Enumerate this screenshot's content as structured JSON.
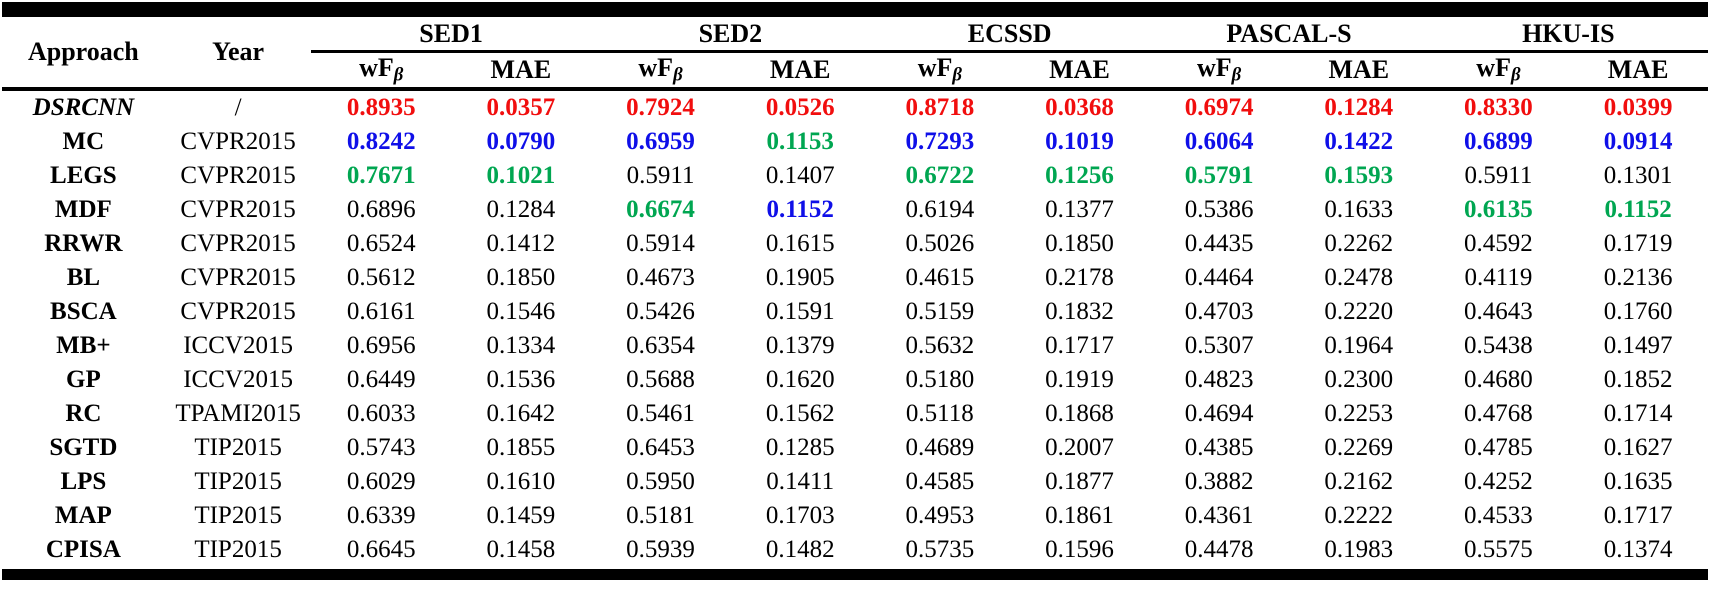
{
  "colors": {
    "r": "#f10e0e",
    "b": "#0f0fe8",
    "g": "#00a651",
    "k": "#000000"
  },
  "table": {
    "headers": {
      "approach": "Approach",
      "year": "Year"
    },
    "groups": [
      {
        "label": "SED1"
      },
      {
        "label": "SED2"
      },
      {
        "label": "ECSSD"
      },
      {
        "label": "PASCAL-S"
      },
      {
        "label": "HKU-IS"
      }
    ],
    "subcols": {
      "wf": "wF",
      "beta": "β",
      "mae": "MAE"
    },
    "rows": [
      {
        "approach": "DSRCNN",
        "italic": true,
        "year": "/",
        "cells": [
          {
            "v": "0.8935",
            "c": "r"
          },
          {
            "v": "0.0357",
            "c": "r"
          },
          {
            "v": "0.7924",
            "c": "r"
          },
          {
            "v": "0.0526",
            "c": "r"
          },
          {
            "v": "0.8718",
            "c": "r"
          },
          {
            "v": "0.0368",
            "c": "r"
          },
          {
            "v": "0.6974",
            "c": "r"
          },
          {
            "v": "0.1284",
            "c": "r"
          },
          {
            "v": "0.8330",
            "c": "r"
          },
          {
            "v": "0.0399",
            "c": "r"
          }
        ]
      },
      {
        "approach": "MC",
        "italic": false,
        "year": "CVPR2015",
        "cells": [
          {
            "v": "0.8242",
            "c": "b"
          },
          {
            "v": "0.0790",
            "c": "b"
          },
          {
            "v": "0.6959",
            "c": "b"
          },
          {
            "v": "0.1153",
            "c": "g"
          },
          {
            "v": "0.7293",
            "c": "b"
          },
          {
            "v": "0.1019",
            "c": "b"
          },
          {
            "v": "0.6064",
            "c": "b"
          },
          {
            "v": "0.1422",
            "c": "b"
          },
          {
            "v": "0.6899",
            "c": "b"
          },
          {
            "v": "0.0914",
            "c": "b"
          }
        ]
      },
      {
        "approach": "LEGS",
        "italic": false,
        "year": "CVPR2015",
        "cells": [
          {
            "v": "0.7671",
            "c": "g"
          },
          {
            "v": "0.1021",
            "c": "g"
          },
          {
            "v": "0.5911",
            "c": "k"
          },
          {
            "v": "0.1407",
            "c": "k"
          },
          {
            "v": "0.6722",
            "c": "g"
          },
          {
            "v": "0.1256",
            "c": "g"
          },
          {
            "v": "0.5791",
            "c": "g"
          },
          {
            "v": "0.1593",
            "c": "g"
          },
          {
            "v": "0.5911",
            "c": "k"
          },
          {
            "v": "0.1301",
            "c": "k"
          }
        ]
      },
      {
        "approach": "MDF",
        "italic": false,
        "year": "CVPR2015",
        "cells": [
          {
            "v": "0.6896",
            "c": "k"
          },
          {
            "v": "0.1284",
            "c": "k"
          },
          {
            "v": "0.6674",
            "c": "g"
          },
          {
            "v": "0.1152",
            "c": "b"
          },
          {
            "v": "0.6194",
            "c": "k"
          },
          {
            "v": "0.1377",
            "c": "k"
          },
          {
            "v": "0.5386",
            "c": "k"
          },
          {
            "v": "0.1633",
            "c": "k"
          },
          {
            "v": "0.6135",
            "c": "g"
          },
          {
            "v": "0.1152",
            "c": "g"
          }
        ]
      },
      {
        "approach": "RRWR",
        "italic": false,
        "year": "CVPR2015",
        "cells": [
          {
            "v": "0.6524",
            "c": "k"
          },
          {
            "v": "0.1412",
            "c": "k"
          },
          {
            "v": "0.5914",
            "c": "k"
          },
          {
            "v": "0.1615",
            "c": "k"
          },
          {
            "v": "0.5026",
            "c": "k"
          },
          {
            "v": "0.1850",
            "c": "k"
          },
          {
            "v": "0.4435",
            "c": "k"
          },
          {
            "v": "0.2262",
            "c": "k"
          },
          {
            "v": "0.4592",
            "c": "k"
          },
          {
            "v": "0.1719",
            "c": "k"
          }
        ]
      },
      {
        "approach": "BL",
        "italic": false,
        "year": "CVPR2015",
        "cells": [
          {
            "v": "0.5612",
            "c": "k"
          },
          {
            "v": "0.1850",
            "c": "k"
          },
          {
            "v": "0.4673",
            "c": "k"
          },
          {
            "v": "0.1905",
            "c": "k"
          },
          {
            "v": "0.4615",
            "c": "k"
          },
          {
            "v": "0.2178",
            "c": "k"
          },
          {
            "v": "0.4464",
            "c": "k"
          },
          {
            "v": "0.2478",
            "c": "k"
          },
          {
            "v": "0.4119",
            "c": "k"
          },
          {
            "v": "0.2136",
            "c": "k"
          }
        ]
      },
      {
        "approach": "BSCA",
        "italic": false,
        "year": "CVPR2015",
        "cells": [
          {
            "v": "0.6161",
            "c": "k"
          },
          {
            "v": "0.1546",
            "c": "k"
          },
          {
            "v": "0.5426",
            "c": "k"
          },
          {
            "v": "0.1591",
            "c": "k"
          },
          {
            "v": "0.5159",
            "c": "k"
          },
          {
            "v": "0.1832",
            "c": "k"
          },
          {
            "v": "0.4703",
            "c": "k"
          },
          {
            "v": "0.2220",
            "c": "k"
          },
          {
            "v": "0.4643",
            "c": "k"
          },
          {
            "v": "0.1760",
            "c": "k"
          }
        ]
      },
      {
        "approach": "MB+",
        "italic": false,
        "year": "ICCV2015",
        "cells": [
          {
            "v": "0.6956",
            "c": "k"
          },
          {
            "v": "0.1334",
            "c": "k"
          },
          {
            "v": "0.6354",
            "c": "k"
          },
          {
            "v": "0.1379",
            "c": "k"
          },
          {
            "v": "0.5632",
            "c": "k"
          },
          {
            "v": "0.1717",
            "c": "k"
          },
          {
            "v": "0.5307",
            "c": "k"
          },
          {
            "v": "0.1964",
            "c": "k"
          },
          {
            "v": "0.5438",
            "c": "k"
          },
          {
            "v": "0.1497",
            "c": "k"
          }
        ]
      },
      {
        "approach": "GP",
        "italic": false,
        "year": "ICCV2015",
        "cells": [
          {
            "v": "0.6449",
            "c": "k"
          },
          {
            "v": "0.1536",
            "c": "k"
          },
          {
            "v": "0.5688",
            "c": "k"
          },
          {
            "v": "0.1620",
            "c": "k"
          },
          {
            "v": "0.5180",
            "c": "k"
          },
          {
            "v": "0.1919",
            "c": "k"
          },
          {
            "v": "0.4823",
            "c": "k"
          },
          {
            "v": "0.2300",
            "c": "k"
          },
          {
            "v": "0.4680",
            "c": "k"
          },
          {
            "v": "0.1852",
            "c": "k"
          }
        ]
      },
      {
        "approach": "RC",
        "italic": false,
        "year": "TPAMI2015",
        "cells": [
          {
            "v": "0.6033",
            "c": "k"
          },
          {
            "v": "0.1642",
            "c": "k"
          },
          {
            "v": "0.5461",
            "c": "k"
          },
          {
            "v": "0.1562",
            "c": "k"
          },
          {
            "v": "0.5118",
            "c": "k"
          },
          {
            "v": "0.1868",
            "c": "k"
          },
          {
            "v": "0.4694",
            "c": "k"
          },
          {
            "v": "0.2253",
            "c": "k"
          },
          {
            "v": "0.4768",
            "c": "k"
          },
          {
            "v": "0.1714",
            "c": "k"
          }
        ]
      },
      {
        "approach": "SGTD",
        "italic": false,
        "year": "TIP2015",
        "cells": [
          {
            "v": "0.5743",
            "c": "k"
          },
          {
            "v": "0.1855",
            "c": "k"
          },
          {
            "v": "0.6453",
            "c": "k"
          },
          {
            "v": "0.1285",
            "c": "k"
          },
          {
            "v": "0.4689",
            "c": "k"
          },
          {
            "v": "0.2007",
            "c": "k"
          },
          {
            "v": "0.4385",
            "c": "k"
          },
          {
            "v": "0.2269",
            "c": "k"
          },
          {
            "v": "0.4785",
            "c": "k"
          },
          {
            "v": "0.1627",
            "c": "k"
          }
        ]
      },
      {
        "approach": "LPS",
        "italic": false,
        "year": "TIP2015",
        "cells": [
          {
            "v": "0.6029",
            "c": "k"
          },
          {
            "v": "0.1610",
            "c": "k"
          },
          {
            "v": "0.5950",
            "c": "k"
          },
          {
            "v": "0.1411",
            "c": "k"
          },
          {
            "v": "0.4585",
            "c": "k"
          },
          {
            "v": "0.1877",
            "c": "k"
          },
          {
            "v": "0.3882",
            "c": "k"
          },
          {
            "v": "0.2162",
            "c": "k"
          },
          {
            "v": "0.4252",
            "c": "k"
          },
          {
            "v": "0.1635",
            "c": "k"
          }
        ]
      },
      {
        "approach": "MAP",
        "italic": false,
        "year": "TIP2015",
        "cells": [
          {
            "v": "0.6339",
            "c": "k"
          },
          {
            "v": "0.1459",
            "c": "k"
          },
          {
            "v": "0.5181",
            "c": "k"
          },
          {
            "v": "0.1703",
            "c": "k"
          },
          {
            "v": "0.4953",
            "c": "k"
          },
          {
            "v": "0.1861",
            "c": "k"
          },
          {
            "v": "0.4361",
            "c": "k"
          },
          {
            "v": "0.2222",
            "c": "k"
          },
          {
            "v": "0.4533",
            "c": "k"
          },
          {
            "v": "0.1717",
            "c": "k"
          }
        ]
      },
      {
        "approach": "CPISA",
        "italic": false,
        "year": "TIP2015",
        "cells": [
          {
            "v": "0.6645",
            "c": "k"
          },
          {
            "v": "0.1458",
            "c": "k"
          },
          {
            "v": "0.5939",
            "c": "k"
          },
          {
            "v": "0.1482",
            "c": "k"
          },
          {
            "v": "0.5735",
            "c": "k"
          },
          {
            "v": "0.1596",
            "c": "k"
          },
          {
            "v": "0.4478",
            "c": "k"
          },
          {
            "v": "0.1983",
            "c": "k"
          },
          {
            "v": "0.5575",
            "c": "k"
          },
          {
            "v": "0.1374",
            "c": "k"
          }
        ]
      }
    ]
  }
}
